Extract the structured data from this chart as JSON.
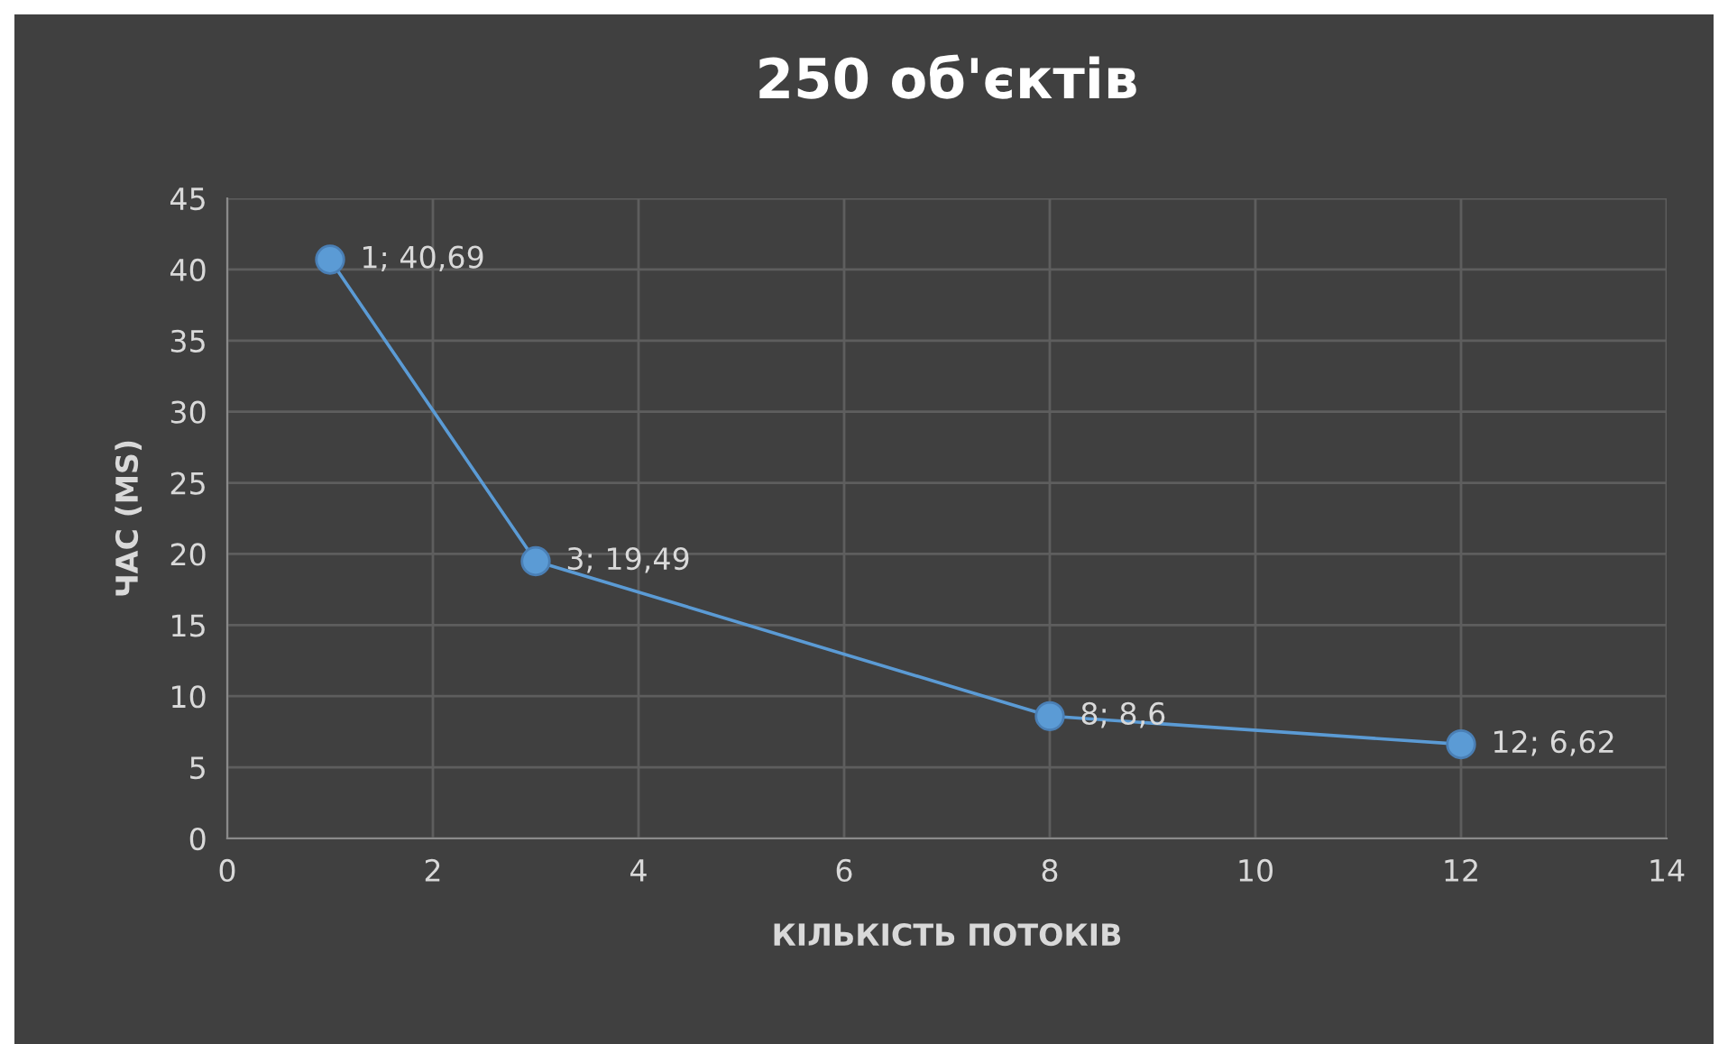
{
  "chart_data": {
    "type": "line",
    "title": "250 об'єктів",
    "xlabel": "КІЛЬКІСТЬ ПОТОКІВ",
    "ylabel": "ЧАС (MS)",
    "x": [
      1,
      3,
      8,
      12
    ],
    "series": [
      {
        "color": "#5b9bd5",
        "values": [
          40.69,
          19.49,
          8.6,
          6.62
        ],
        "value_labels": [
          "1; 40,69",
          "3; 19,49",
          "8; 8,6",
          "12; 6,62"
        ]
      }
    ],
    "xlim": [
      0,
      14
    ],
    "xticks": [
      0,
      2,
      4,
      6,
      8,
      10,
      12,
      14
    ],
    "ylim": [
      0,
      45
    ],
    "yticks": [
      0,
      5,
      10,
      15,
      20,
      25,
      30,
      35,
      40,
      45
    ],
    "grid": true,
    "marker": "circle",
    "line_style": "solid",
    "legend": false
  }
}
